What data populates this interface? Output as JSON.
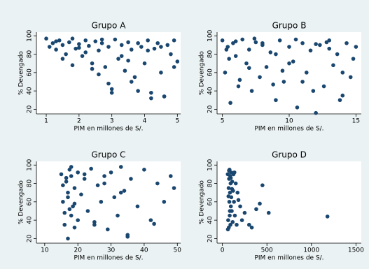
{
  "chart_data": [
    {
      "type": "scatter",
      "title": "Grupo A",
      "x_label": "PIM en millones de S/.",
      "y_label": "% Devengado",
      "color": "#1a476f",
      "xlim": [
        0.7,
        5.1
      ],
      "ylim": [
        15,
        104
      ],
      "xticks": [
        1,
        2,
        3,
        4,
        5
      ],
      "yticks": [
        20,
        40,
        60,
        80,
        100
      ],
      "grid": false,
      "x": [
        1.0,
        1.1,
        1.2,
        1.3,
        1.4,
        1.5,
        1.6,
        1.7,
        1.8,
        1.9,
        2.0,
        2.1,
        2.2,
        2.3,
        2.4,
        2.5,
        2.6,
        2.7,
        2.8,
        2.9,
        3.0,
        3.1,
        3.2,
        3.3,
        3.4,
        3.5,
        3.6,
        3.7,
        3.8,
        3.9,
        4.0,
        4.1,
        4.2,
        4.3,
        4.4,
        4.5,
        4.6,
        4.7,
        4.8,
        4.9,
        5.0,
        1.5,
        1.8,
        2.2,
        2.6,
        2.9,
        3.0,
        3.3,
        3.6,
        4.2,
        4.5,
        4.6,
        2.4,
        3.8,
        4.9,
        1.3,
        2.0,
        2.7,
        3.5,
        4.1
      ],
      "values": [
        97,
        88,
        92,
        85,
        95,
        90,
        80,
        93,
        97,
        86,
        91,
        78,
        95,
        89,
        70,
        94,
        84,
        92,
        66,
        88,
        42,
        96,
        75,
        90,
        62,
        93,
        85,
        55,
        92,
        88,
        70,
        95,
        38,
        86,
        92,
        60,
        34,
        90,
        80,
        95,
        72,
        75,
        68,
        82,
        58,
        48,
        38,
        78,
        50,
        32,
        88,
        34,
        64,
        40,
        66,
        94,
        87,
        96,
        73,
        84
      ]
    },
    {
      "type": "scatter",
      "title": "Grupo B",
      "x_label": "PIM en millones de S/.",
      "y_label": "% Devengado",
      "color": "#1a476f",
      "xlim": [
        4.6,
        15.4
      ],
      "ylim": [
        15,
        104
      ],
      "xticks": [
        5,
        10,
        15
      ],
      "yticks": [
        20,
        40,
        60,
        80,
        100
      ],
      "grid": false,
      "x": [
        5.0,
        5.2,
        5.4,
        5.6,
        5.8,
        6.0,
        6.2,
        6.5,
        6.8,
        7.0,
        7.2,
        7.5,
        7.8,
        8.0,
        8.3,
        8.6,
        9.0,
        9.3,
        9.6,
        10.0,
        10.3,
        10.6,
        11.0,
        11.3,
        11.6,
        12.0,
        12.3,
        12.6,
        13.0,
        13.3,
        13.6,
        14.0,
        14.3,
        14.6,
        15.0,
        5.5,
        6.3,
        7.4,
        8.8,
        9.5,
        10.5,
        11.8,
        12.8,
        13.8,
        14.8,
        5.3,
        7.0,
        9.0,
        11.0,
        13.0,
        6.0,
        8.0,
        10.0,
        12.0,
        14.0
      ],
      "values": [
        95,
        60,
        88,
        27,
        92,
        78,
        45,
        96,
        70,
        85,
        40,
        93,
        55,
        90,
        66,
        82,
        30,
        95,
        50,
        88,
        72,
        22,
        92,
        60,
        84,
        16,
        90,
        45,
        95,
        68,
        80,
        35,
        92,
        55,
        88,
        75,
        52,
        97,
        47,
        62,
        96,
        40,
        93,
        30,
        75,
        85,
        65,
        80,
        50,
        86,
        94,
        92,
        70,
        91,
        60
      ]
    },
    {
      "type": "scatter",
      "title": "Grupo C",
      "x_label": "PIM en millones de S/.",
      "y_label": "% Devengado",
      "color": "#1a476f",
      "xlim": [
        7.5,
        51
      ],
      "ylim": [
        15,
        104
      ],
      "xticks": [
        10,
        20,
        30,
        40,
        50
      ],
      "yticks": [
        20,
        40,
        60,
        80,
        100
      ],
      "grid": false,
      "x": [
        15,
        15.5,
        16,
        16.5,
        17,
        17,
        17.5,
        18,
        18,
        18.5,
        19,
        19,
        20,
        20,
        21,
        22,
        23,
        24,
        25,
        26,
        27,
        28,
        29,
        30,
        31,
        32,
        33,
        34,
        35,
        36,
        38,
        40,
        42,
        44,
        46,
        48,
        49,
        16,
        17,
        18,
        19,
        22,
        25,
        28,
        33,
        35,
        43,
        15.5,
        16.5,
        17.5
      ],
      "values": [
        90,
        60,
        35,
        82,
        20,
        70,
        95,
        45,
        88,
        55,
        75,
        32,
        92,
        40,
        68,
        85,
        50,
        96,
        38,
        78,
        60,
        88,
        30,
        92,
        65,
        45,
        98,
        72,
        22,
        85,
        55,
        95,
        40,
        80,
        60,
        88,
        75,
        48,
        65,
        98,
        58,
        90,
        35,
        80,
        70,
        24,
        36,
        78,
        86,
        52
      ]
    },
    {
      "type": "scatter",
      "title": "Grupo D",
      "x_label": "PIM en millones de S/.",
      "y_label": "% Devengado",
      "color": "#1a476f",
      "xlim": [
        -60,
        1560
      ],
      "ylim": [
        15,
        104
      ],
      "xticks": [
        0,
        500,
        1000,
        1500
      ],
      "yticks": [
        20,
        40,
        60,
        80,
        100
      ],
      "grid": false,
      "x": [
        60,
        65,
        70,
        72,
        75,
        78,
        80,
        82,
        85,
        88,
        90,
        92,
        95,
        98,
        100,
        105,
        110,
        115,
        120,
        125,
        130,
        140,
        150,
        160,
        170,
        180,
        200,
        220,
        250,
        300,
        330,
        380,
        420,
        450,
        520,
        1180,
        62,
        68,
        74,
        84,
        94,
        108,
        135
      ],
      "values": [
        90,
        40,
        75,
        32,
        85,
        60,
        95,
        45,
        70,
        88,
        35,
        80,
        55,
        92,
        65,
        50,
        82,
        38,
        72,
        90,
        60,
        45,
        80,
        35,
        70,
        62,
        55,
        40,
        48,
        35,
        32,
        52,
        58,
        78,
        48,
        44,
        30,
        66,
        94,
        50,
        86,
        74,
        92
      ]
    }
  ]
}
